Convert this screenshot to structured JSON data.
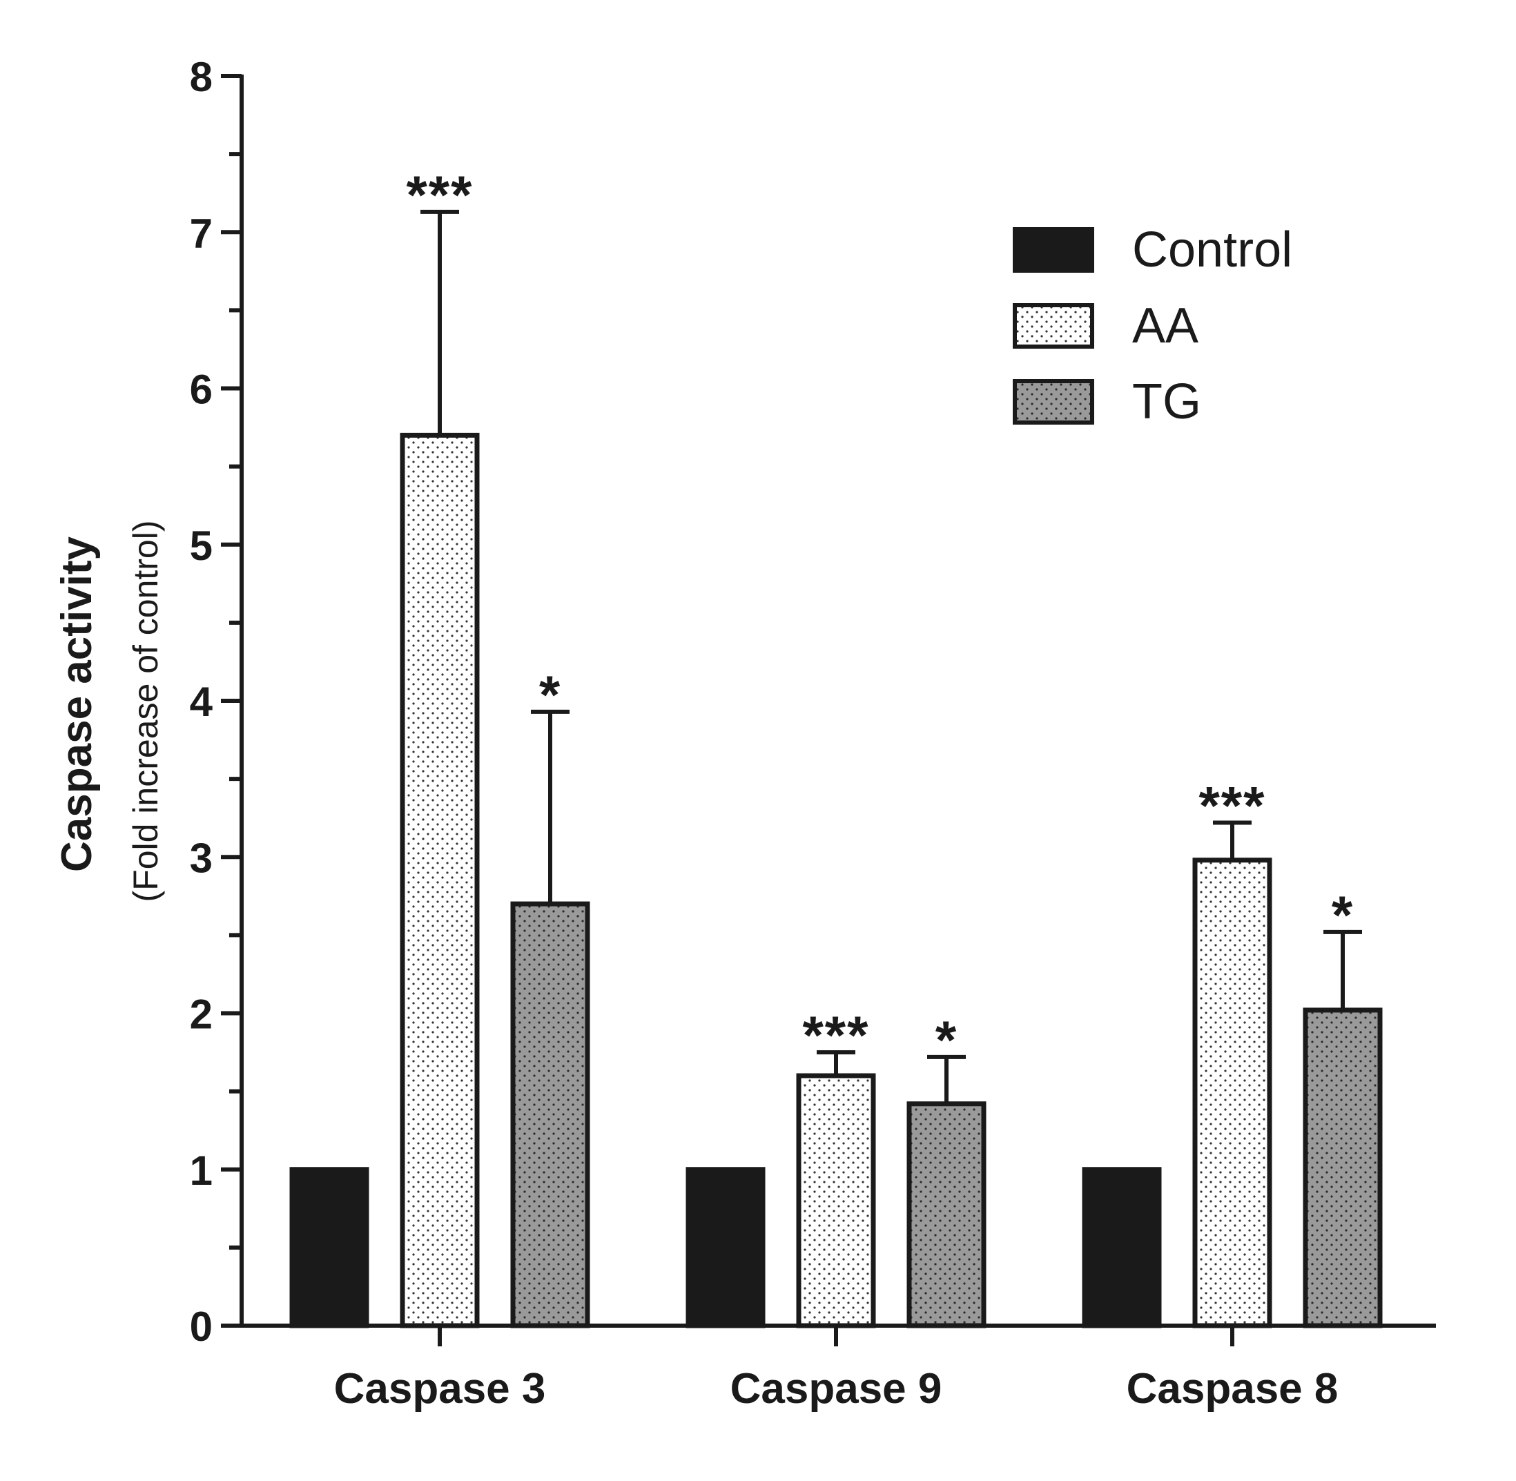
{
  "chart_data": {
    "type": "bar",
    "title": "",
    "ylabel": "Caspase activity",
    "ylabel_sub": "(Fold increase of control)",
    "xlabel": "",
    "ylim": [
      0,
      8
    ],
    "yticks": [
      0,
      1,
      2,
      3,
      4,
      5,
      6,
      7,
      8
    ],
    "categories": [
      "Caspase 3",
      "Caspase 9",
      "Caspase 8"
    ],
    "series": [
      {
        "name": "Control",
        "fill": "solid",
        "color": "#1a1a1a",
        "values": [
          1.0,
          1.0,
          1.0
        ],
        "errors": [
          0,
          0,
          0
        ],
        "significance": [
          "",
          "",
          ""
        ]
      },
      {
        "name": "AA",
        "fill": "dotted-light",
        "color": "#ffffff",
        "values": [
          5.7,
          1.6,
          2.98
        ],
        "errors": [
          1.43,
          0.15,
          0.24
        ],
        "significance": [
          "***",
          "***",
          "***"
        ]
      },
      {
        "name": "TG",
        "fill": "dotted-gray",
        "color": "#9a9a9a",
        "values": [
          2.7,
          1.42,
          2.02
        ],
        "errors": [
          1.23,
          0.3,
          0.5
        ],
        "significance": [
          "*",
          "*",
          "*"
        ]
      }
    ],
    "legend": {
      "position": "top-right",
      "items": [
        "Control",
        "AA",
        "TG"
      ]
    },
    "grid": false
  }
}
